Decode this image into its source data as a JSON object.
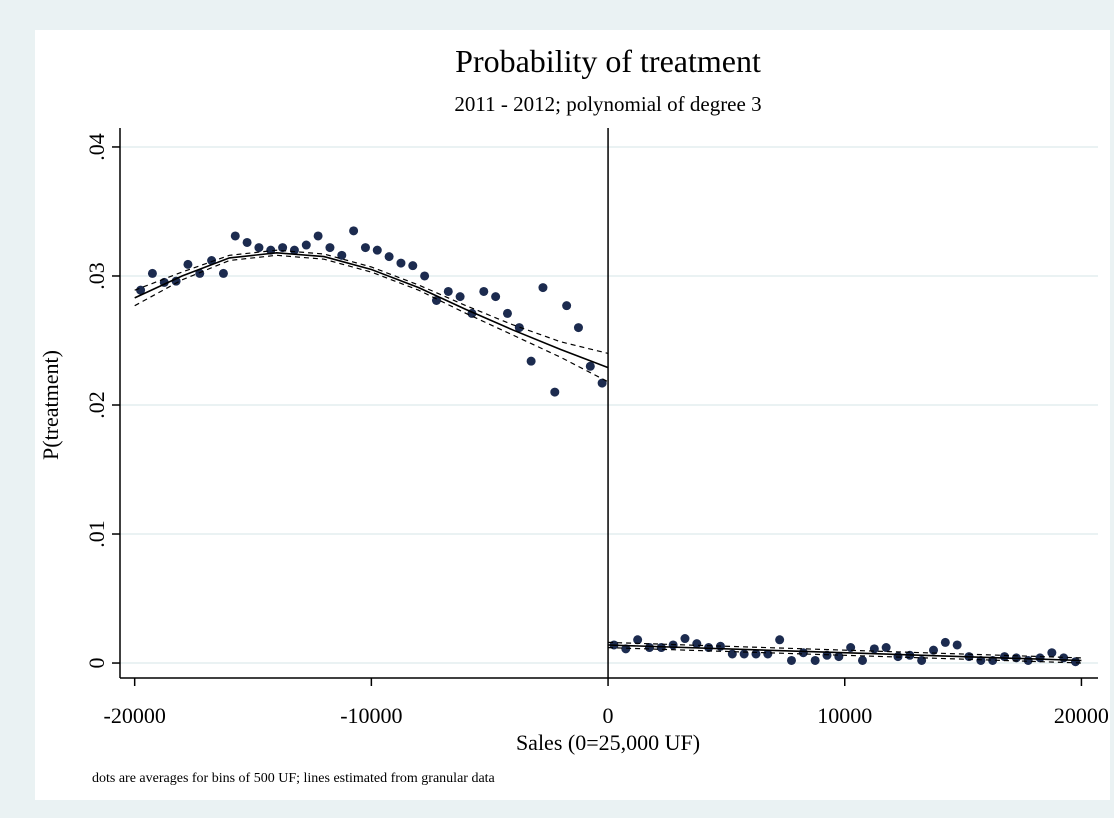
{
  "chart_data": {
    "type": "scatter",
    "title": "Probability of treatment",
    "subtitle": "2011 - 2012; polynomial of degree 3",
    "y_label": "P(treatment)",
    "x_label": "Sales (0=25,000 UF)",
    "note": "dots are averages for bins of 500 UF; lines estimated from granular data",
    "xlim": [
      -20620,
      20700
    ],
    "ylim": [
      -0.00116,
      0.04147
    ],
    "xticks": [
      -20000,
      -10000,
      0,
      10000,
      20000
    ],
    "yticks": [
      0,
      {
        "value": 0.01,
        "label": ".01"
      },
      {
        "value": 0.02,
        "label": ".02"
      },
      {
        "value": 0.03,
        "label": ".03"
      },
      {
        "value": 0.04,
        "label": ".04"
      }
    ],
    "grid": true,
    "xline": 0,
    "series": [
      {
        "kind": "points",
        "color": "#1c2b4f",
        "x": [
          -19750,
          -19250,
          -18750,
          -18250,
          -17750,
          -17250,
          -16750,
          -16250,
          -15750,
          -15250,
          -14750,
          -14250,
          -13750,
          -13250,
          -12750,
          -12250,
          -11750,
          -11250,
          -10750,
          -10250,
          -9750,
          -9250,
          -8750,
          -8250,
          -7750,
          -7250,
          -6750,
          -6250,
          -5750,
          -5250,
          -4750,
          -4250,
          -3750,
          -3250,
          -2750,
          -2250,
          -1750,
          -1250,
          -750,
          -250
        ],
        "values": [
          0.0289,
          0.0302,
          0.0295,
          0.0296,
          0.0309,
          0.0302,
          0.0312,
          0.0302,
          0.0331,
          0.0326,
          0.0322,
          0.032,
          0.0322,
          0.032,
          0.0324,
          0.0331,
          0.0322,
          0.0316,
          0.0335,
          0.0322,
          0.032,
          0.0315,
          0.031,
          0.0308,
          0.03,
          0.0281,
          0.0288,
          0.0284,
          0.0271,
          0.0288,
          0.0284,
          0.0271,
          0.026,
          0.0234,
          0.0291,
          0.021,
          0.0277,
          0.026,
          0.023,
          0.0217
        ]
      },
      {
        "kind": "points",
        "color": "#1c2b4f",
        "x": [
          250,
          750,
          1250,
          1750,
          2250,
          2750,
          3250,
          3750,
          4250,
          4750,
          5250,
          5750,
          6250,
          6750,
          7250,
          7750,
          8250,
          8750,
          9250,
          9750,
          10250,
          10750,
          11250,
          11750,
          12250,
          12750,
          13250,
          13750,
          14250,
          14750,
          15250,
          15750,
          16250,
          16750,
          17250,
          17750,
          18250,
          18750,
          19250,
          19750
        ],
        "values": [
          0.0014,
          0.0011,
          0.0018,
          0.0012,
          0.0012,
          0.0014,
          0.0019,
          0.0015,
          0.0012,
          0.0013,
          0.0007,
          0.0007,
          0.0007,
          0.0007,
          0.0018,
          0.0002,
          0.0008,
          0.0002,
          0.0006,
          0.0005,
          0.0012,
          0.0002,
          0.0011,
          0.0012,
          0.0005,
          0.0006,
          0.0002,
          0.001,
          0.0016,
          0.0014,
          0.0005,
          0.0002,
          0.0002,
          0.0005,
          0.0004,
          0.0002,
          0.0004,
          0.0008,
          0.0004,
          0.0001
        ]
      },
      {
        "kind": "line",
        "color": "#000000",
        "dash": false,
        "x": [
          -20000,
          -18000,
          -16000,
          -14000,
          -12000,
          -10000,
          -8000,
          -6000,
          -4000,
          -2000,
          0
        ],
        "values": [
          0.0283,
          0.03,
          0.0314,
          0.0318,
          0.0315,
          0.0305,
          0.0291,
          0.0274,
          0.0258,
          0.0243,
          0.0229
        ]
      },
      {
        "kind": "line",
        "color": "#000000",
        "dash": true,
        "x": [
          -20000,
          -18000,
          -16000,
          -14000,
          -12000,
          -10000,
          -8000,
          -6000,
          -4000,
          -2000,
          0
        ],
        "values": [
          0.0277,
          0.0297,
          0.0312,
          0.0316,
          0.0313,
          0.0303,
          0.0289,
          0.0271,
          0.0254,
          0.0237,
          0.0218
        ]
      },
      {
        "kind": "line",
        "color": "#000000",
        "dash": true,
        "x": [
          -20000,
          -18000,
          -16000,
          -14000,
          -12000,
          -10000,
          -8000,
          -6000,
          -4000,
          -2000,
          0
        ],
        "values": [
          0.0289,
          0.0303,
          0.0316,
          0.032,
          0.0317,
          0.0307,
          0.0293,
          0.0277,
          0.0262,
          0.0249,
          0.024
        ]
      },
      {
        "kind": "line",
        "color": "#000000",
        "dash": false,
        "x": [
          0,
          20000
        ],
        "values": [
          0.0014,
          0.0002
        ]
      },
      {
        "kind": "line",
        "color": "#000000",
        "dash": true,
        "x": [
          0,
          20000
        ],
        "values": [
          0.0012,
          0.0
        ]
      },
      {
        "kind": "line",
        "color": "#000000",
        "dash": true,
        "x": [
          0,
          20000
        ],
        "values": [
          0.0016,
          0.0004
        ]
      }
    ]
  }
}
